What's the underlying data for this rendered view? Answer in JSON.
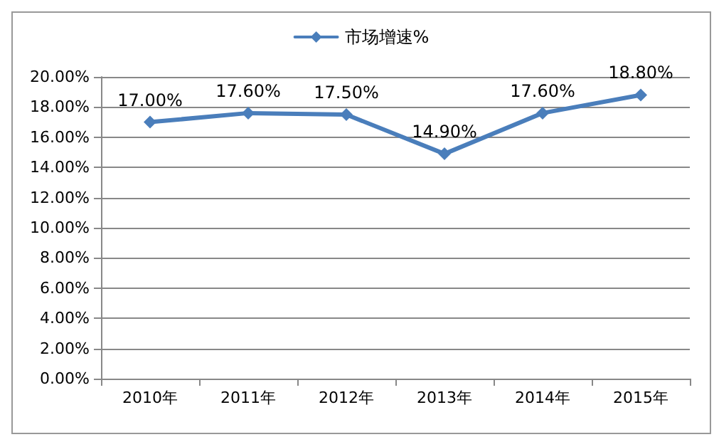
{
  "chart_data": {
    "type": "line",
    "categories": [
      "2010年",
      "2011年",
      "2012年",
      "2013年",
      "2014年",
      "2015年"
    ],
    "series": [
      {
        "name": "市场增速%",
        "color": "#4a7ebb",
        "values": [
          17.0,
          17.6,
          17.5,
          14.9,
          17.6,
          18.8
        ],
        "value_labels": [
          "17.00%",
          "17.60%",
          "17.50%",
          "14.90%",
          "17.60%",
          "18.80%"
        ]
      }
    ],
    "ylim": [
      0,
      20
    ],
    "yticks": [
      {
        "value": 0,
        "label": "0.00%"
      },
      {
        "value": 2,
        "label": "2.00%"
      },
      {
        "value": 4,
        "label": "4.00%"
      },
      {
        "value": 6,
        "label": "6.00%"
      },
      {
        "value": 8,
        "label": "8.00%"
      },
      {
        "value": 10,
        "label": "10.00%"
      },
      {
        "value": 12,
        "label": "12.00%"
      },
      {
        "value": 14,
        "label": "14.00%"
      },
      {
        "value": 16,
        "label": "16.00%"
      },
      {
        "value": 18,
        "label": "18.00%"
      },
      {
        "value": 20,
        "label": "20.00%"
      }
    ],
    "grid": "y",
    "legend": "top",
    "marker": "diamond",
    "line_style": "solid"
  }
}
